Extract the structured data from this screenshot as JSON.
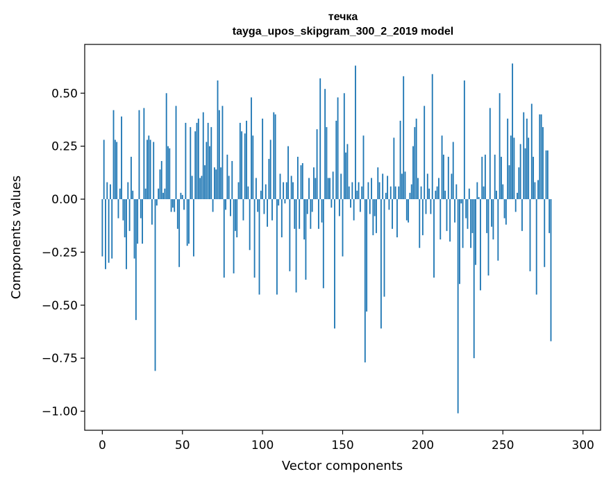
{
  "chart_data": {
    "type": "bar",
    "title": "течка",
    "subtitle": "tayga_upos_skipgram_300_2_2019 model",
    "xlabel": "Vector components",
    "ylabel": "Components values",
    "xlim": [
      -11,
      311
    ],
    "ylim": [
      -1.09,
      0.73
    ],
    "xticks": [
      0,
      50,
      100,
      150,
      200,
      250,
      300
    ],
    "xtick_labels": [
      "0",
      "50",
      "100",
      "150",
      "200",
      "250",
      "300"
    ],
    "yticks": [
      0.5,
      0.25,
      0.0,
      -0.25,
      -0.5,
      -0.75,
      -1.0
    ],
    "ytick_labels": [
      "0.50",
      "0.25",
      "0.00",
      "−0.25",
      "−0.50",
      "−0.75",
      "−1.00"
    ],
    "grid": false,
    "bar_color": "#1f77b4",
    "x_start": 0,
    "values": [
      -0.27,
      0.28,
      -0.33,
      0.08,
      -0.3,
      0.07,
      -0.28,
      0.42,
      0.28,
      0.27,
      -0.09,
      0.05,
      0.39,
      -0.1,
      -0.18,
      -0.33,
      0.08,
      -0.15,
      0.2,
      0.04,
      -0.28,
      -0.57,
      -0.21,
      0.42,
      -0.09,
      -0.21,
      0.43,
      0.05,
      0.28,
      0.3,
      0.28,
      -0.12,
      0.27,
      -0.81,
      -0.03,
      0.05,
      0.14,
      0.18,
      0.03,
      0.05,
      0.5,
      0.25,
      0.24,
      -0.06,
      -0.04,
      -0.06,
      0.44,
      -0.14,
      -0.32,
      0.03,
      0.02,
      -0.05,
      0.36,
      -0.22,
      -0.21,
      0.34,
      0.11,
      -0.27,
      0.32,
      0.36,
      0.38,
      0.1,
      0.11,
      0.41,
      0.16,
      0.27,
      0.36,
      0.25,
      0.34,
      -0.06,
      0.15,
      0.14,
      0.56,
      0.42,
      0.15,
      0.44,
      -0.37,
      -0.05,
      0.21,
      0.11,
      -0.08,
      0.18,
      -0.35,
      -0.15,
      -0.18,
      0.08,
      0.36,
      0.32,
      -0.1,
      0.31,
      0.37,
      0.06,
      -0.24,
      0.48,
      0.3,
      -0.37,
      0.1,
      -0.06,
      -0.45,
      0.04,
      0.38,
      -0.07,
      0.07,
      -0.13,
      0.19,
      0.28,
      -0.1,
      0.41,
      0.4,
      -0.45,
      -0.03,
      0.12,
      -0.18,
      0.08,
      -0.02,
      0.08,
      0.25,
      -0.34,
      0.11,
      0.08,
      -0.14,
      -0.44,
      0.2,
      -0.14,
      0.16,
      0.17,
      -0.19,
      -0.38,
      -0.07,
      0.1,
      -0.14,
      -0.06,
      0.15,
      0.1,
      0.33,
      -0.14,
      0.57,
      -0.11,
      -0.42,
      0.52,
      0.34,
      0.1,
      0.1,
      -0.04,
      0.13,
      -0.61,
      0.37,
      0.48,
      -0.08,
      0.12,
      -0.27,
      0.5,
      0.22,
      0.26,
      0.06,
      -0.04,
      0.08,
      -0.1,
      0.63,
      0.04,
      0.08,
      -0.06,
      0.06,
      0.3,
      -0.77,
      -0.53,
      0.08,
      -0.07,
      0.1,
      -0.17,
      -0.08,
      -0.16,
      0.15,
      0.08,
      -0.61,
      0.12,
      -0.46,
      0.03,
      0.11,
      -0.05,
      0.06,
      -0.14,
      0.29,
      0.06,
      -0.18,
      0.06,
      0.37,
      0.12,
      0.58,
      0.13,
      -0.1,
      -0.11,
      0.03,
      0.07,
      0.25,
      0.34,
      0.38,
      0.1,
      -0.23,
      0.06,
      -0.17,
      0.44,
      -0.07,
      0.12,
      0.05,
      -0.07,
      0.59,
      -0.37,
      0.04,
      0.06,
      0.1,
      -0.19,
      0.3,
      0.21,
      0.04,
      -0.15,
      0.2,
      -0.2,
      0.12,
      0.27,
      -0.11,
      0.07,
      -1.01,
      -0.4,
      -0.02,
      -0.23,
      0.56,
      -0.09,
      -0.14,
      0.05,
      -0.23,
      -0.16,
      -0.75,
      -0.31,
      0.08,
      0.01,
      -0.43,
      0.2,
      0.06,
      0.21,
      -0.16,
      -0.36,
      0.43,
      -0.13,
      -0.19,
      0.21,
      0.04,
      -0.29,
      0.5,
      0.2,
      0.07,
      -0.09,
      -0.12,
      0.38,
      0.16,
      0.3,
      0.64,
      0.29,
      -0.06,
      0.03,
      0.15,
      0.26,
      -0.15,
      0.41,
      0.24,
      0.38,
      0.29,
      -0.34,
      0.45,
      0.2,
      0.08,
      -0.45,
      0.09,
      0.4,
      0.4,
      0.34,
      -0.32,
      0.23,
      0.23,
      -0.16,
      -0.67
    ]
  }
}
